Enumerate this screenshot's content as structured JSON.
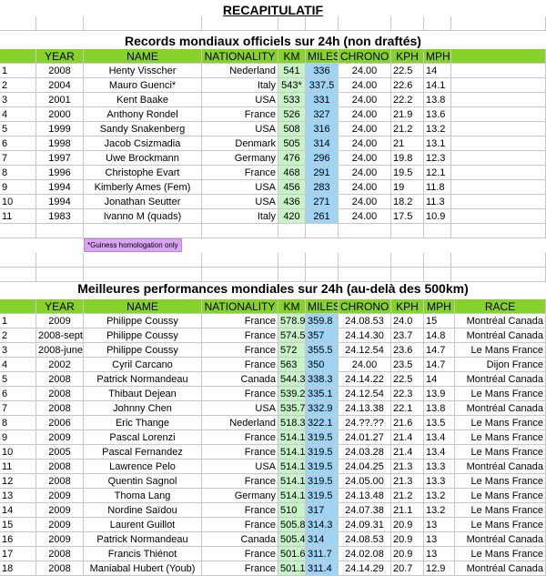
{
  "page": {
    "title": "RECAPITULATIF"
  },
  "table1": {
    "title": "Records mondiaux officiels sur 24h (non draftés)",
    "headers": [
      "",
      "YEAR",
      "NAME",
      "NATIONALITY",
      "KM",
      "MILES",
      "CHRONO",
      "KPH",
      "MPH"
    ],
    "rows": [
      [
        "1",
        "2008",
        "Henty Visscher",
        "Nederland",
        "541",
        "336",
        "24.00",
        "22.5",
        "14"
      ],
      [
        "2",
        "2004",
        "Mauro Guenci*",
        "Italy",
        "543*",
        "337.5",
        "24.00",
        "22.6",
        "14.1"
      ],
      [
        "3",
        "2001",
        "Kent Baake",
        "USA",
        "533",
        "331",
        "24.00",
        "22.2",
        "13.8"
      ],
      [
        "4",
        "2000",
        "Anthony Rondel",
        "France",
        "526",
        "327",
        "24.00",
        "21.9",
        "13.6"
      ],
      [
        "5",
        "1999",
        "Sandy Snakenberg",
        "USA",
        "508",
        "316",
        "24.00",
        "21.2",
        "13.2"
      ],
      [
        "6",
        "1998",
        "Jacob Csizmadia",
        "Denmark",
        "505",
        "314",
        "24.00",
        "21",
        "13.1"
      ],
      [
        "7",
        "1997",
        "Uwe Brockmann",
        "Germany",
        "476",
        "296",
        "24.00",
        "19.8",
        "12.3"
      ],
      [
        "8",
        "1996",
        "Christophe Evart",
        "France",
        "468",
        "291",
        "24.00",
        "19.5",
        "12.1"
      ],
      [
        "9",
        "1994",
        "Kimberly Ames (Fem)",
        "USA",
        "456",
        "283",
        "24.00",
        "19",
        "11.8"
      ],
      [
        "10",
        "1994",
        "Jonathan Seutter",
        "USA",
        "436",
        "271",
        "24.00",
        "18.2",
        "11.3"
      ],
      [
        "11",
        "1983",
        "Ivanno M (quads)",
        "Italy",
        "420",
        "261",
        "24.00",
        "17.5",
        "10.9"
      ]
    ],
    "note": "*Guiness homologation only"
  },
  "table2": {
    "title": "Meilleures performances mondiales sur 24h (au-delà des 500km)",
    "headers": [
      "",
      "YEAR",
      "NAME",
      "NATIONALITY",
      "KM",
      "MILES",
      "CHRONO",
      "KPH",
      "MPH",
      "RACE"
    ],
    "rows": [
      [
        "1",
        "2009",
        "Philippe Coussy",
        "France",
        "578.9",
        "359.8",
        "24.08.53",
        "24.0",
        "15",
        "Montréal Canada"
      ],
      [
        "2",
        "2008-sept",
        "Philippe Coussy",
        "France",
        "574.5",
        "357",
        "24.14.30",
        "23.7",
        "14.8",
        "Montréal Canada"
      ],
      [
        "3",
        "2008-june",
        "Philippe Coussy",
        "France",
        "572",
        "355.5",
        "24.12.54",
        "23.6",
        "14.7",
        "Le Mans France"
      ],
      [
        "4",
        "2002",
        "Cyril Carcano",
        "France",
        "563",
        "350",
        "24.00",
        "23.5",
        "14.7",
        "Dijon France"
      ],
      [
        "5",
        "2008",
        "Patrick Normandeau",
        "Canada",
        "544.3",
        "338.3",
        "24.14.22",
        "22.5",
        "14",
        "Montréal Canada"
      ],
      [
        "6",
        "2008",
        "Thibaut Dejean",
        "France",
        "539.2",
        "335.1",
        "24.12.54",
        "22.3",
        "13.9",
        "Le Mans France"
      ],
      [
        "7",
        "2008",
        "Johnny Chen",
        "USA",
        "535.7",
        "332.9",
        "24.13.38",
        "22.1",
        "13.8",
        "Montréal Canada"
      ],
      [
        "8",
        "2006",
        "Eric Thange",
        "Nederland",
        "518.3",
        "322.1",
        "24.??.??",
        "21.6",
        "13.5",
        "Le Mans France"
      ],
      [
        "9",
        "2009",
        "Pascal Lorenzi",
        "France",
        "514.1",
        "319.5",
        "24.01.27",
        "21.4",
        "13.4",
        "Le Mans France"
      ],
      [
        "10",
        "2005",
        "Pascal Fernandez",
        "France",
        "514.1",
        "319.5",
        "24.03.28",
        "21.4",
        "13.4",
        "Le Mans France"
      ],
      [
        "11",
        "2008",
        "Lawrence Pelo",
        "USA",
        "514.1",
        "319.5",
        "24.04.25",
        "21.3",
        "13.3",
        "Montréal Canada"
      ],
      [
        "12",
        "2008",
        "Quentin Sagnol",
        "France",
        "514.1",
        "319.5",
        "24.05.00",
        "21.3",
        "13.3",
        "Le Mans France"
      ],
      [
        "13",
        "2009",
        "Thoma Lang",
        "Germany",
        "514.1",
        "319.5",
        "24.13.48",
        "21.2",
        "13.2",
        "Le Mans France"
      ],
      [
        "14",
        "2009",
        "Nordine Saïdou",
        "France",
        "510",
        "317",
        "24.07.38",
        "21.1",
        "13.2",
        "Le Mans France"
      ],
      [
        "15",
        "2009",
        "Laurent Guillot",
        "France",
        "505.8",
        "314.3",
        "24.09.31",
        "20.9",
        "13",
        "Le Mans France"
      ],
      [
        "16",
        "2009",
        "Patrick Normandeau",
        "Canada",
        "505.4",
        "314",
        "24.08.53",
        "20.9",
        "13",
        "Montréal Canada"
      ],
      [
        "17",
        "2008",
        "Francis Thiénot",
        "France",
        "501.6",
        "311.7",
        "24.02.08",
        "20.9",
        "13",
        "Le Mans France"
      ],
      [
        "18",
        "2008",
        "Maniabal Hubert (Youb)",
        "France",
        "501.1",
        "311.4",
        "24.14.29",
        "20.7",
        "12.9",
        "Montréal Canada"
      ]
    ]
  }
}
